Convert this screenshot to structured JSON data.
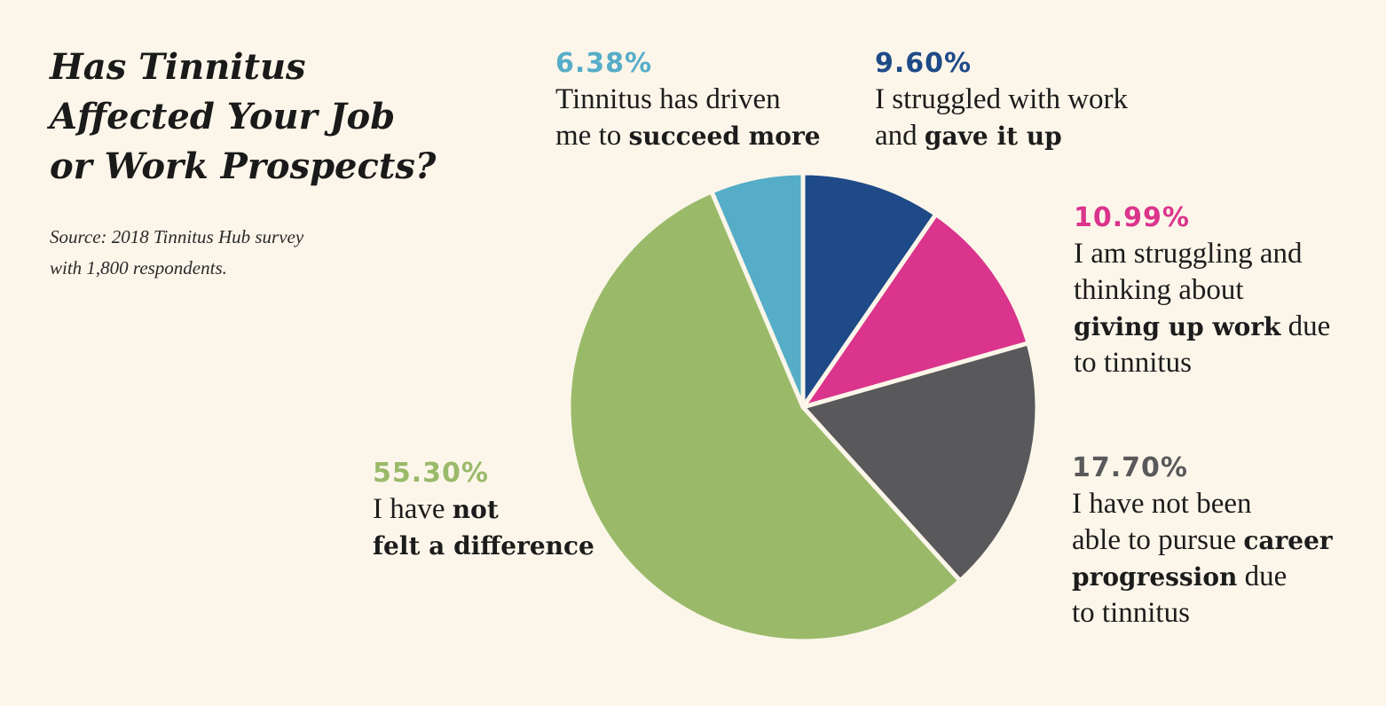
{
  "title_lines": [
    "Has Tinnitus",
    "Affected Your Job",
    "or Work Prospects?"
  ],
  "source_lines": [
    "Source: 2018 Tinnitus Hub survey",
    "with 1,800 respondents."
  ],
  "chart_data": {
    "type": "pie",
    "title": "Has Tinnitus Affected Your Job or Work Prospects?",
    "subtitle": "Source: 2018 Tinnitus Hub survey with 1,800 respondents.",
    "slices": [
      {
        "label": "I struggled with work and gave it up",
        "value": 9.6,
        "value_label": "9.60%",
        "color": "#1e4a88"
      },
      {
        "label": "I am struggling and thinking about giving up work due to tinnitus",
        "value": 10.99,
        "value_label": "10.99%",
        "color": "#db348c"
      },
      {
        "label": "I have not been able to pursue career progression due to tinnitus",
        "value": 17.7,
        "value_label": "17.70%",
        "color": "#59595b"
      },
      {
        "label": "I have not felt a difference",
        "value": 55.3,
        "value_label": "55.30%",
        "color": "#9aba6a"
      },
      {
        "label": "Tinnitus has driven me to succeed more",
        "value": 6.38,
        "value_label": "6.38%",
        "color": "#56adc8"
      }
    ]
  },
  "labels": {
    "gave_up": {
      "pct": "9.60%",
      "l1": "I struggled with work",
      "l2_a": "and ",
      "l2_b": "gave it up"
    },
    "struggling": {
      "pct": "10.99%",
      "l1": "I am struggling and",
      "l2": "thinking about",
      "l3_b": "giving up work",
      "l3_a": " due",
      "l4": "to tinnitus"
    },
    "career": {
      "pct": "17.70%",
      "l1": "I have not been",
      "l2_a": "able to pursue ",
      "l2_b": "career",
      "l3_b": "progression",
      "l3_a": " due",
      "l4": "to tinnitus"
    },
    "no_diff": {
      "pct": "55.30%",
      "l1_a": "I have ",
      "l1_b": "not",
      "l2_b": "felt a difference"
    },
    "succeed": {
      "pct": "6.38%",
      "l1": "Tinnitus has driven",
      "l2_a": "me to ",
      "l2_b": "succeed more"
    }
  }
}
